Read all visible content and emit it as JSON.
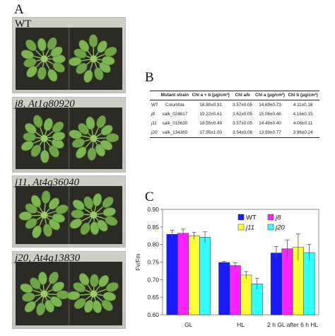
{
  "panel_a": {
    "letter": "A",
    "labels": [
      "WT",
      "j8, At1g80920",
      "j11, At4g36040",
      "j20, At4g13830"
    ]
  },
  "panel_b": {
    "letter": "B",
    "headers": [
      "",
      "Mutant strain",
      "Chl a + b (μg/cm²)",
      "Chl a/b",
      "Chl a (μg/cm²)",
      "Chl b (μg/cm²)"
    ],
    "rows": [
      [
        "WT",
        "Columbia",
        "18.80±0.91",
        "3.57±0.05",
        "14.69±0.73",
        "4.11±0.18"
      ],
      [
        "j8",
        "salk_024617",
        "19.22±0.61",
        "3.62±0.05",
        "15.06±0.46",
        "4.16±0.15"
      ],
      [
        "j11",
        "salk_015630",
        "18.55±0.49",
        "3.57±0.05",
        "14.49±0.40",
        "4.06±0.11"
      ],
      [
        "j20",
        "salk_134365",
        "17.95±1.00",
        "3.54±0.06",
        "13.99±0.77",
        "3.96±0.24"
      ]
    ]
  },
  "panel_c": {
    "letter": "C"
  },
  "chart_data": {
    "type": "bar",
    "ylabel": "Fv/Fm",
    "ylim": [
      0.6,
      0.9
    ],
    "yticks": [
      "0.60",
      "0.65",
      "0.70",
      "0.75",
      "0.80",
      "0.85",
      "0.90"
    ],
    "categories": [
      "GL",
      "HL",
      "2 h GL after 6 h HL"
    ],
    "legend_position": "top-right",
    "series": [
      {
        "name": "WT",
        "color": "#1a1aff",
        "values": [
          0.829,
          0.749,
          0.776
        ],
        "errors": [
          0.012,
          0.003,
          0.018
        ]
      },
      {
        "name": "j8",
        "color": "#ff22ff",
        "values": [
          0.832,
          0.74,
          0.788
        ],
        "errors": [
          0.012,
          0.008,
          0.025
        ]
      },
      {
        "name": "j11",
        "color": "#ffff33",
        "values": [
          0.825,
          0.713,
          0.792
        ],
        "errors": [
          0.01,
          0.01,
          0.038
        ]
      },
      {
        "name": "j20",
        "color": "#33ffff",
        "values": [
          0.821,
          0.688,
          0.777
        ],
        "errors": [
          0.015,
          0.016,
          0.023
        ]
      }
    ]
  }
}
